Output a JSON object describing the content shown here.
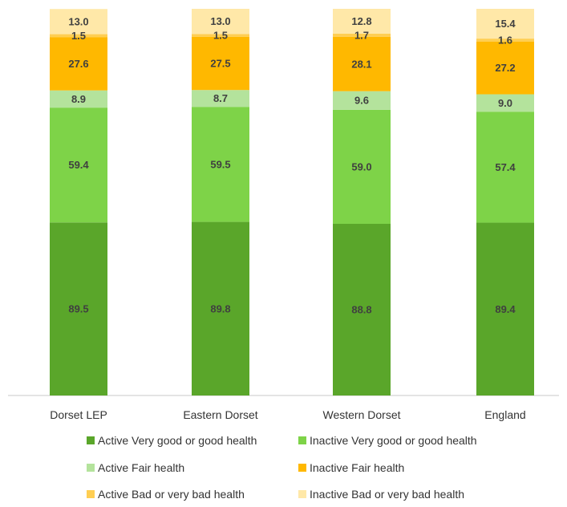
{
  "chart_data": {
    "type": "bar",
    "stacked": true,
    "title": "",
    "xlabel": "",
    "ylabel": "",
    "categories": [
      "Dorset LEP",
      "Eastern Dorset",
      "Western Dorset",
      "England"
    ],
    "series": [
      {
        "name": "Active Very good or good health",
        "color": "#5aa62a",
        "values": [
          89.5,
          89.8,
          88.8,
          89.4
        ]
      },
      {
        "name": "Inactive Very good or good health",
        "color": "#7ed348",
        "values": [
          59.4,
          59.5,
          59.0,
          57.4
        ]
      },
      {
        "name": "Active Fair health",
        "color": "#b4e39c",
        "values": [
          8.9,
          8.7,
          9.6,
          9.0
        ]
      },
      {
        "name": "Inactive Fair health",
        "color": "#ffb800",
        "values": [
          27.6,
          27.5,
          28.1,
          27.2
        ]
      },
      {
        "name": "Active Bad or very bad health",
        "color": "#ffce52",
        "values": [
          1.5,
          1.5,
          1.7,
          1.6
        ]
      },
      {
        "name": "Inactive Bad or very bad health",
        "color": "#ffe8a8",
        "values": [
          13.0,
          13.0,
          12.8,
          15.4
        ]
      }
    ],
    "value_labels": [
      [
        "89.5",
        "89.8",
        "88.8",
        "89.4"
      ],
      [
        "59.4",
        "59.5",
        "59.0",
        "57.4"
      ],
      [
        "8.9",
        "8.7",
        "9.6",
        "9.0"
      ],
      [
        "27.6",
        "27.5",
        "28.1",
        "27.2"
      ],
      [
        "1.5",
        "1.5",
        "1.7",
        "1.6"
      ],
      [
        "13.0",
        "13.0",
        "12.8",
        "15.4"
      ]
    ],
    "ylim": [
      0,
      200
    ],
    "grid": false,
    "legend_position": "bottom"
  }
}
